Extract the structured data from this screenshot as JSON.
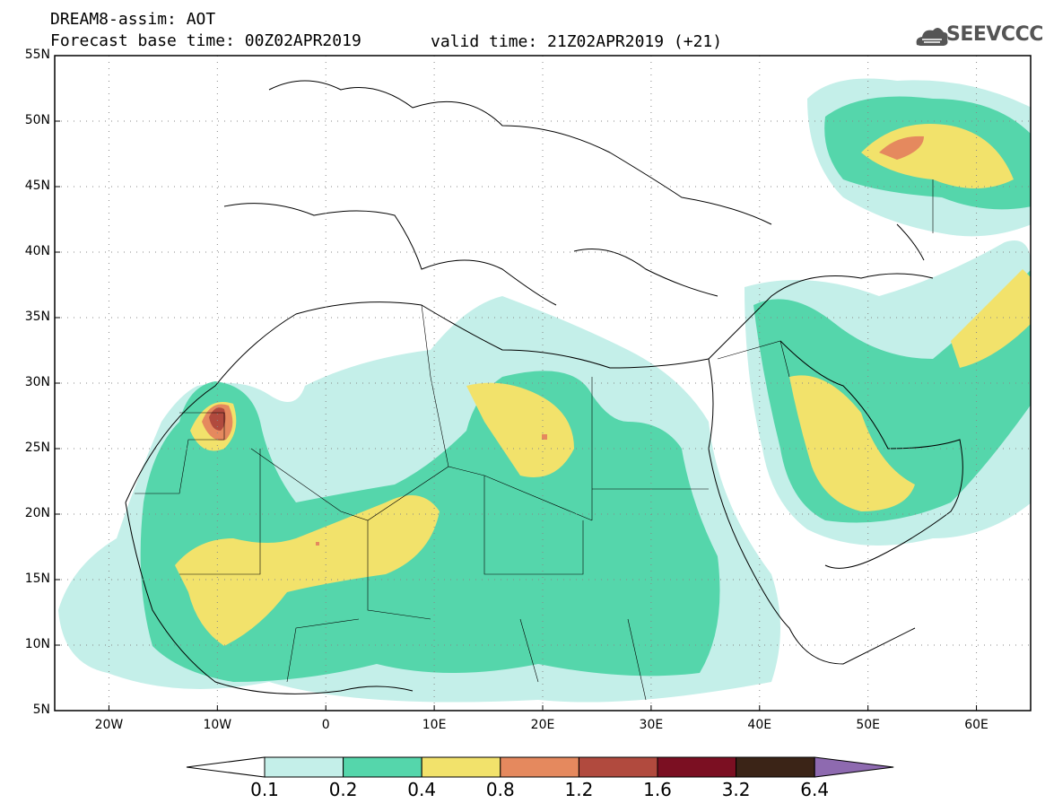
{
  "title": {
    "line1": "DREAM8-assim: AOT",
    "line2": "Forecast base time: 00Z02APR2019",
    "valid": "valid time: 21Z02APR2019 (+21)"
  },
  "logo": {
    "text": "SEEVCCC",
    "icon": "cloud-logo-icon"
  },
  "map": {
    "lat_ticks": [
      "55N",
      "50N",
      "45N",
      "40N",
      "35N",
      "30N",
      "25N",
      "20N",
      "15N",
      "10N",
      "5N"
    ],
    "lon_ticks": [
      "20W",
      "10W",
      "0",
      "10E",
      "20E",
      "30E",
      "40E",
      "50E",
      "60E"
    ],
    "lat_range": [
      5,
      55
    ],
    "lon_range": [
      -25,
      65
    ],
    "grid": "dotted"
  },
  "colorbar": {
    "levels": [
      "0.1",
      "0.2",
      "0.4",
      "0.8",
      "1.2",
      "1.6",
      "3.2",
      "6.4"
    ],
    "colors": [
      "#c4efe9",
      "#55d6ab",
      "#f2e26b",
      "#e5895e",
      "#b14a3e",
      "#7b0f22",
      "#3b2417"
    ],
    "under_color": "#ffffff",
    "over_color": "#8e6ab0"
  }
}
